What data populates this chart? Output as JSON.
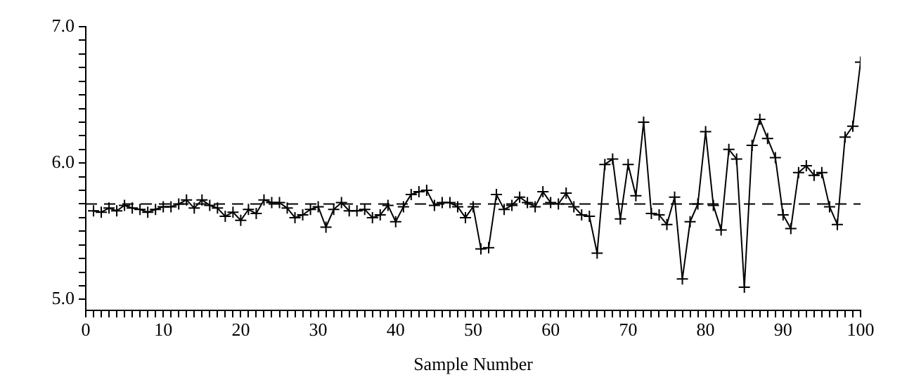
{
  "chart_data": {
    "type": "line",
    "xlabel": "Sample Number",
    "x": [
      1,
      2,
      3,
      4,
      5,
      6,
      7,
      8,
      9,
      10,
      11,
      12,
      13,
      14,
      15,
      16,
      17,
      18,
      19,
      20,
      21,
      22,
      23,
      24,
      25,
      26,
      27,
      28,
      29,
      30,
      31,
      32,
      33,
      34,
      35,
      36,
      37,
      38,
      39,
      40,
      41,
      42,
      43,
      44,
      45,
      46,
      47,
      48,
      49,
      50,
      51,
      52,
      53,
      54,
      55,
      56,
      57,
      58,
      59,
      60,
      61,
      62,
      63,
      64,
      65,
      66,
      67,
      68,
      69,
      70,
      71,
      72,
      73,
      74,
      75,
      76,
      77,
      78,
      79,
      80,
      81,
      82,
      83,
      84,
      85,
      86,
      87,
      88,
      89,
      90,
      91,
      92,
      93,
      94,
      95,
      96,
      97,
      98,
      99,
      100
    ],
    "series": [
      {
        "color": "#000000",
        "values": [
          5.65,
          5.64,
          5.67,
          5.65,
          5.69,
          5.67,
          5.66,
          5.64,
          5.66,
          5.68,
          5.68,
          5.7,
          5.73,
          5.67,
          5.73,
          5.69,
          5.67,
          5.61,
          5.64,
          5.58,
          5.66,
          5.63,
          5.73,
          5.71,
          5.71,
          5.67,
          5.6,
          5.62,
          5.66,
          5.68,
          5.53,
          5.66,
          5.71,
          5.65,
          5.65,
          5.66,
          5.6,
          5.62,
          5.69,
          5.57,
          5.68,
          5.77,
          5.79,
          5.8,
          5.69,
          5.71,
          5.71,
          5.68,
          5.6,
          5.68,
          5.37,
          5.38,
          5.77,
          5.66,
          5.69,
          5.75,
          5.71,
          5.68,
          5.79,
          5.71,
          5.7,
          5.78,
          5.68,
          5.62,
          5.61,
          5.34,
          5.99,
          6.03,
          5.59,
          5.99,
          5.76,
          6.3,
          5.63,
          5.62,
          5.55,
          5.75,
          5.15,
          5.57,
          5.7,
          6.23,
          5.69,
          5.51,
          6.1,
          6.03,
          5.09,
          6.13,
          6.32,
          6.18,
          6.04,
          5.62,
          5.52,
          5.93,
          5.98,
          5.91,
          5.93,
          5.68,
          5.55,
          6.19,
          6.27,
          6.74
        ]
      }
    ],
    "xlim": [
      0,
      100
    ],
    "xticks": [
      0,
      {
        "value": 1,
        "label": null
      },
      {
        "value": 2,
        "label": null
      },
      {
        "value": 3,
        "label": null
      },
      {
        "value": 4,
        "label": null
      },
      {
        "value": 5,
        "label": null
      },
      {
        "value": 6,
        "label": null
      },
      {
        "value": 7,
        "label": null
      },
      {
        "value": 8,
        "label": null
      },
      {
        "value": 9,
        "label": null
      },
      10,
      {
        "value": 11,
        "label": null
      },
      {
        "value": 12,
        "label": null
      },
      {
        "value": 13,
        "label": null
      },
      {
        "value": 14,
        "label": null
      },
      {
        "value": 15,
        "label": null
      },
      {
        "value": 16,
        "label": null
      },
      {
        "value": 17,
        "label": null
      },
      {
        "value": 18,
        "label": null
      },
      {
        "value": 19,
        "label": null
      },
      20,
      {
        "value": 21,
        "label": null
      },
      {
        "value": 22,
        "label": null
      },
      {
        "value": 23,
        "label": null
      },
      {
        "value": 24,
        "label": null
      },
      {
        "value": 25,
        "label": null
      },
      {
        "value": 26,
        "label": null
      },
      {
        "value": 27,
        "label": null
      },
      {
        "value": 28,
        "label": null
      },
      {
        "value": 29,
        "label": null
      },
      30,
      {
        "value": 31,
        "label": null
      },
      {
        "value": 32,
        "label": null
      },
      {
        "value": 33,
        "label": null
      },
      {
        "value": 34,
        "label": null
      },
      {
        "value": 35,
        "label": null
      },
      {
        "value": 36,
        "label": null
      },
      {
        "value": 37,
        "label": null
      },
      {
        "value": 38,
        "label": null
      },
      {
        "value": 39,
        "label": null
      },
      40,
      {
        "value": 41,
        "label": null
      },
      {
        "value": 42,
        "label": null
      },
      {
        "value": 43,
        "label": null
      },
      {
        "value": 44,
        "label": null
      },
      {
        "value": 45,
        "label": null
      },
      {
        "value": 46,
        "label": null
      },
      {
        "value": 47,
        "label": null
      },
      {
        "value": 48,
        "label": null
      },
      {
        "value": 49,
        "label": null
      },
      50,
      {
        "value": 51,
        "label": null
      },
      {
        "value": 52,
        "label": null
      },
      {
        "value": 53,
        "label": null
      },
      {
        "value": 54,
        "label": null
      },
      {
        "value": 55,
        "label": null
      },
      {
        "value": 56,
        "label": null
      },
      {
        "value": 57,
        "label": null
      },
      {
        "value": 58,
        "label": null
      },
      {
        "value": 59,
        "label": null
      },
      60,
      {
        "value": 61,
        "label": null
      },
      {
        "value": 62,
        "label": null
      },
      {
        "value": 63,
        "label": null
      },
      {
        "value": 64,
        "label": null
      },
      {
        "value": 65,
        "label": null
      },
      {
        "value": 66,
        "label": null
      },
      {
        "value": 67,
        "label": null
      },
      {
        "value": 68,
        "label": null
      },
      {
        "value": 69,
        "label": null
      },
      70,
      {
        "value": 71,
        "label": null
      },
      {
        "value": 72,
        "label": null
      },
      {
        "value": 73,
        "label": null
      },
      {
        "value": 74,
        "label": null
      },
      {
        "value": 75,
        "label": null
      },
      {
        "value": 76,
        "label": null
      },
      {
        "value": 77,
        "label": null
      },
      {
        "value": 78,
        "label": null
      },
      {
        "value": 79,
        "label": null
      },
      80,
      {
        "value": 81,
        "label": null
      },
      {
        "value": 82,
        "label": null
      },
      {
        "value": 83,
        "label": null
      },
      {
        "value": 84,
        "label": null
      },
      {
        "value": 85,
        "label": null
      },
      {
        "value": 86,
        "label": null
      },
      {
        "value": 87,
        "label": null
      },
      {
        "value": 88,
        "label": null
      },
      {
        "value": 89,
        "label": null
      },
      90,
      {
        "value": 91,
        "label": null
      },
      {
        "value": 92,
        "label": null
      },
      {
        "value": 93,
        "label": null
      },
      {
        "value": 94,
        "label": null
      },
      {
        "value": 95,
        "label": null
      },
      {
        "value": 96,
        "label": null
      },
      {
        "value": 97,
        "label": null
      },
      {
        "value": 98,
        "label": null
      },
      {
        "value": 99,
        "label": null
      },
      100
    ],
    "ylim": [
      4.92,
      7.0
    ],
    "yticks": [
      {
        "value": 5.0,
        "label": "5.0"
      },
      {
        "value": 5.1,
        "label": null
      },
      {
        "value": 5.2,
        "label": null
      },
      {
        "value": 5.3,
        "label": null
      },
      {
        "value": 5.4,
        "label": null
      },
      {
        "value": 5.5,
        "label": null
      },
      {
        "value": 5.6,
        "label": null
      },
      {
        "value": 5.7,
        "label": null
      },
      {
        "value": 5.8,
        "label": null
      },
      {
        "value": 5.9,
        "label": null
      },
      {
        "value": 6.0,
        "label": "6.0"
      },
      {
        "value": 6.1,
        "label": null
      },
      {
        "value": 6.2,
        "label": null
      },
      {
        "value": 6.3,
        "label": null
      },
      {
        "value": 6.4,
        "label": null
      },
      {
        "value": 6.5,
        "label": null
      },
      {
        "value": 6.6,
        "label": null
      },
      {
        "value": 6.7,
        "label": null
      },
      {
        "value": 6.8,
        "label": null
      },
      {
        "value": 6.9,
        "label": null
      },
      {
        "value": 7.0,
        "label": "7.0"
      }
    ],
    "ref_lines": [
      {
        "axis": "y",
        "value": 5.7,
        "line_style": "dashed"
      }
    ],
    "marker": "cross",
    "line_style": "solid",
    "grid": false,
    "legend": false
  }
}
